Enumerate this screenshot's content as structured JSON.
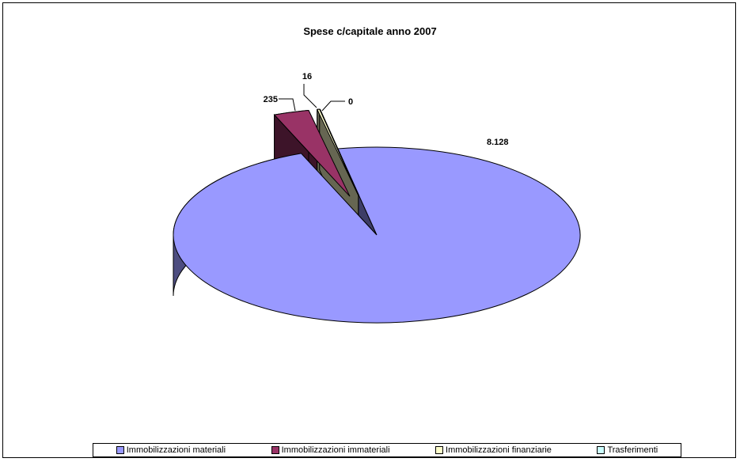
{
  "chart_data": {
    "type": "pie",
    "title": "Spese c/capitale anno 2007",
    "categories": [
      "Immobilizzazioni materiali",
      "Immobilizzazioni immateriali",
      "Immobilizzazioni finanziarie",
      "Trasferimenti"
    ],
    "values": [
      8128,
      235,
      16,
      0
    ],
    "data_labels": [
      "8.128",
      "235",
      "16",
      "0"
    ],
    "colors": [
      "#9999ff",
      "#993366",
      "#ffffcc",
      "#ccffff"
    ],
    "legend_position": "bottom",
    "three_d": true
  }
}
